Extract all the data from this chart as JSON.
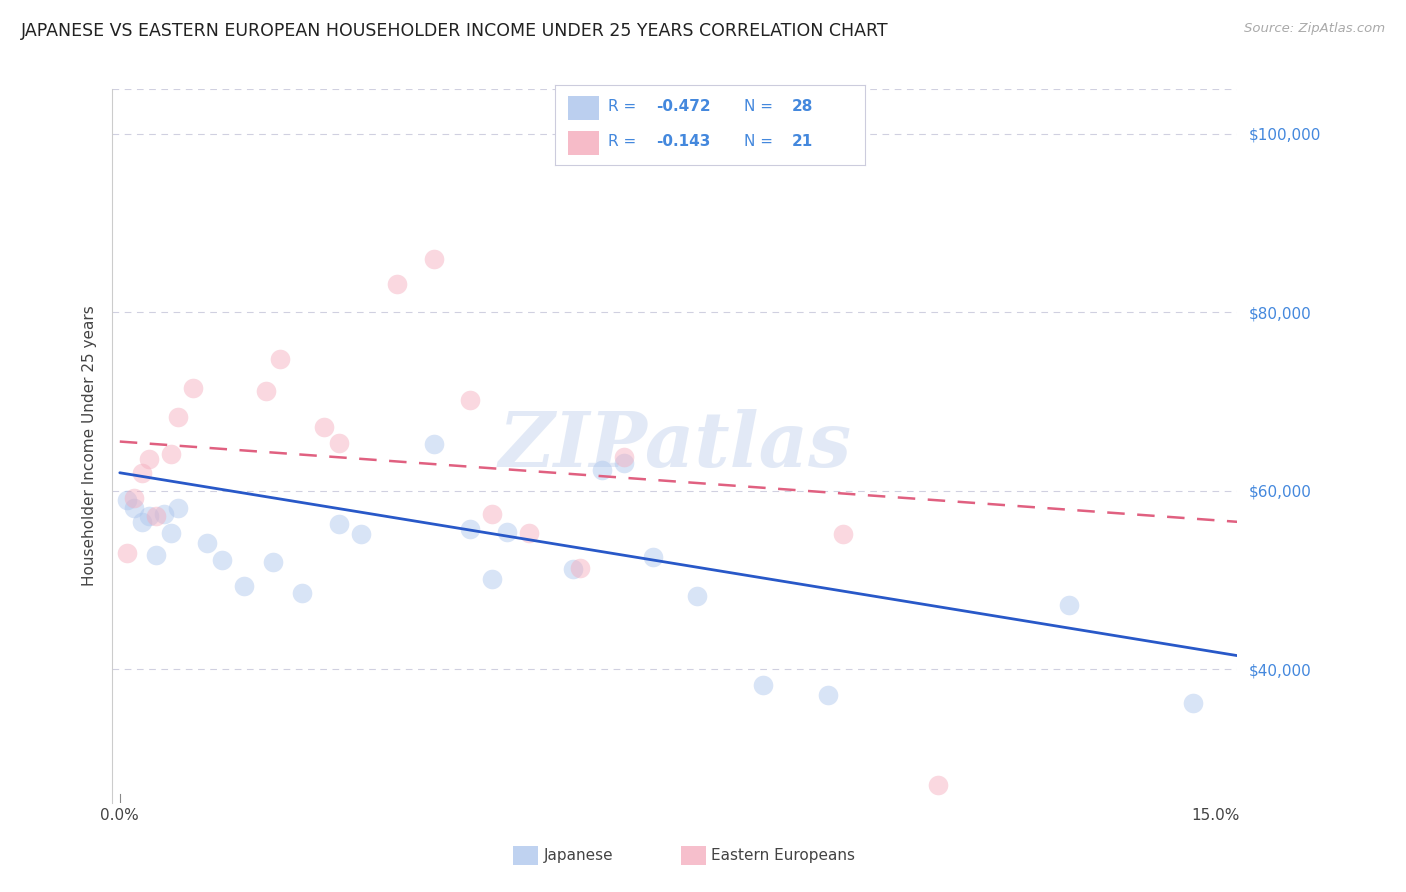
{
  "title": "JAPANESE VS EASTERN EUROPEAN HOUSEHOLDER INCOME UNDER 25 YEARS CORRELATION CHART",
  "source": "Source: ZipAtlas.com",
  "ylabel": "Householder Income Under 25 years",
  "watermark": "ZIPatlas",
  "ylim": [
    25000,
    105000
  ],
  "xlim": [
    -0.001,
    0.153
  ],
  "yticks": [
    40000,
    60000,
    80000,
    100000
  ],
  "ytick_labels": [
    "$40,000",
    "$60,000",
    "$80,000",
    "$100,000"
  ],
  "xtick_positions": [
    0.0,
    0.025,
    0.05,
    0.075,
    0.1,
    0.125,
    0.15
  ],
  "xtick_labels": [
    "0.0%",
    "",
    "",
    "",
    "",
    "",
    "15.0%"
  ],
  "japanese_color": "#aac4ec",
  "eastern_color": "#f4aabb",
  "japanese_line_color": "#2858c8",
  "eastern_line_color": "#e06080",
  "axis_tick_color": "#4488dd",
  "grid_color": "#d0d0e0",
  "background_color": "#ffffff",
  "japanese_x": [
    0.001,
    0.002,
    0.003,
    0.004,
    0.005,
    0.006,
    0.007,
    0.008,
    0.012,
    0.014,
    0.017,
    0.021,
    0.025,
    0.03,
    0.033,
    0.043,
    0.048,
    0.051,
    0.053,
    0.062,
    0.066,
    0.069,
    0.073,
    0.079,
    0.088,
    0.097,
    0.13,
    0.147
  ],
  "japanese_y": [
    59000,
    58000,
    56500,
    57200,
    52800,
    57400,
    55200,
    58100,
    54100,
    52200,
    49300,
    52000,
    48500,
    56200,
    55100,
    65200,
    55700,
    50100,
    55400,
    51200,
    62300,
    63100,
    52500,
    48200,
    38200,
    37100,
    47200,
    36200
  ],
  "eastern_x": [
    0.001,
    0.002,
    0.003,
    0.004,
    0.005,
    0.007,
    0.008,
    0.01,
    0.02,
    0.022,
    0.028,
    0.03,
    0.038,
    0.043,
    0.048,
    0.051,
    0.056,
    0.063,
    0.069,
    0.099,
    0.112
  ],
  "eastern_y": [
    53000,
    59200,
    62000,
    63500,
    57200,
    64100,
    68200,
    71500,
    71200,
    74800,
    67100,
    65300,
    83200,
    86000,
    70200,
    57400,
    55200,
    51300,
    63800,
    55100,
    27000
  ],
  "japanese_trendline_x": [
    0.0,
    0.153
  ],
  "japanese_trendline_y": [
    62000,
    41500
  ],
  "eastern_trendline_x": [
    0.0,
    0.153
  ],
  "eastern_trendline_y": [
    65500,
    56500
  ],
  "title_fontsize": 12.5,
  "source_fontsize": 9.5,
  "ylabel_fontsize": 11,
  "tick_fontsize": 11,
  "marker_size": 200,
  "marker_alpha": 0.45,
  "legend_r_japanese": "-0.472",
  "legend_n_japanese": "28",
  "legend_r_eastern": "-0.143",
  "legend_n_eastern": "21"
}
